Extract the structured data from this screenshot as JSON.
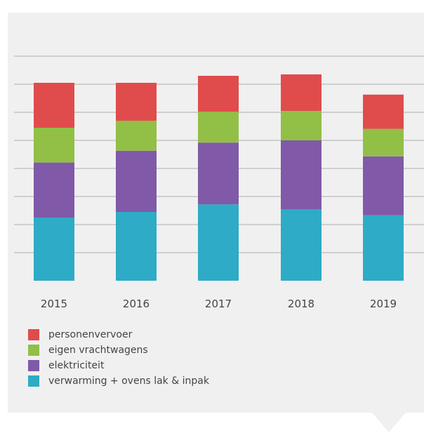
{
  "chart_data": {
    "type": "bar",
    "stacked": true,
    "categories": [
      "2015",
      "2016",
      "2017",
      "2018",
      "2019"
    ],
    "series": [
      {
        "name": "verwarming + ovens lak & inpak",
        "color": "#2eabc6",
        "values": [
          2.25,
          2.45,
          2.72,
          2.55,
          2.33
        ]
      },
      {
        "name": "elektriciteit",
        "color": "#8059a8",
        "values": [
          1.96,
          2.18,
          2.2,
          2.45,
          2.1
        ]
      },
      {
        "name": "eigen vrachtwagens",
        "color": "#92bf46",
        "values": [
          1.24,
          1.07,
          1.1,
          1.05,
          0.98
        ]
      },
      {
        "name": "personenvervoer",
        "color": "#e04c4c",
        "values": [
          1.6,
          1.35,
          1.28,
          1.3,
          1.22
        ]
      }
    ],
    "ylim": [
      0,
      8
    ],
    "grid": true,
    "legend_position": "bottom-left"
  }
}
